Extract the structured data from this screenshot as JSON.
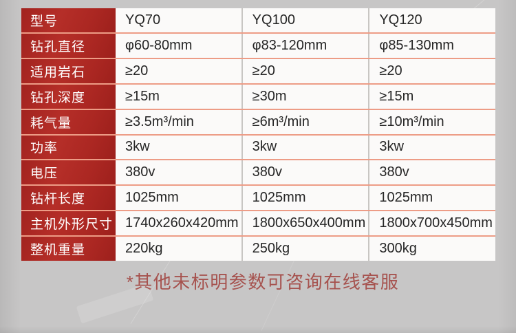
{
  "table": {
    "rows": [
      {
        "label": "型号",
        "values": [
          "YQ70",
          "YQ100",
          "YQ120"
        ]
      },
      {
        "label": "钻孔直径",
        "values": [
          "φ60-80mm",
          "φ83-120mm",
          "φ85-130mm"
        ]
      },
      {
        "label": "适用岩石",
        "values": [
          "≥20",
          "≥20",
          "≥20"
        ]
      },
      {
        "label": "钻孔深度",
        "values": [
          "≥15m",
          "≥30m",
          "≥15m"
        ]
      },
      {
        "label": "耗气量",
        "values": [
          "≥3.5m³/min",
          "≥6m³/min",
          "≥10m³/min"
        ]
      },
      {
        "label": "功率",
        "values": [
          "3kw",
          "3kw",
          "3kw"
        ]
      },
      {
        "label": "电压",
        "values": [
          "380v",
          "380v",
          "380v"
        ]
      },
      {
        "label": "钻杆长度",
        "values": [
          "1025mm",
          "1025mm",
          "1025mm"
        ]
      },
      {
        "label": "主机外形尺寸",
        "values": [
          "1740x260x420mm",
          "1800x650x400mm",
          "1800x700x450mm"
        ]
      },
      {
        "label": "整机重量",
        "values": [
          "220kg",
          "250kg",
          "300kg"
        ]
      }
    ]
  },
  "note": "*其他未标明参数可咨询在线客服",
  "colors": {
    "header_red": "#b02a25",
    "divider_salmon": "#ed9c86",
    "divider_gray": "#c8c6c3",
    "note_red": "#a6524e",
    "background_gray": "#c7c6c6",
    "cell_white": "#fbfaf9"
  }
}
